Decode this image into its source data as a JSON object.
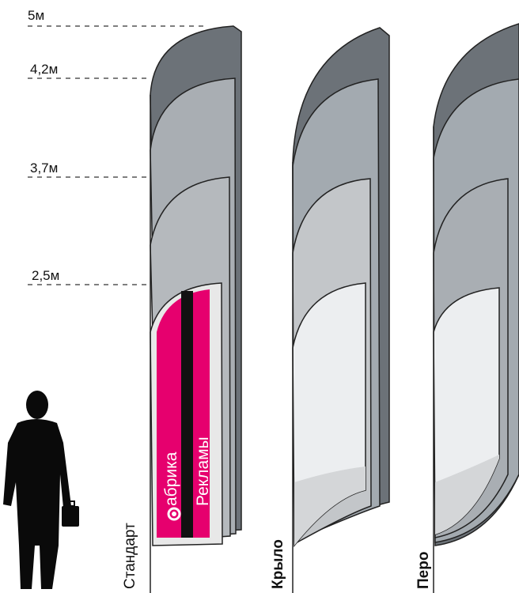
{
  "heights": [
    {
      "label": "5м"
    },
    {
      "label": "4,2м"
    },
    {
      "label": "3,7м"
    },
    {
      "label": "2,5м"
    }
  ],
  "flags": [
    {
      "name": "Стандарт"
    },
    {
      "name": "Крыло"
    },
    {
      "name": "Перо"
    }
  ],
  "logo": {
    "line1": "абрика",
    "line2": "Рекламы"
  },
  "colors": {
    "magenta": "#e6006e",
    "flag_dark": "#6c7278",
    "flag_mid": "#a9aeb3",
    "flag_light": "#c3c6c9",
    "flag_lightest": "#eceef0",
    "silhouette": "#0a0a0a"
  }
}
